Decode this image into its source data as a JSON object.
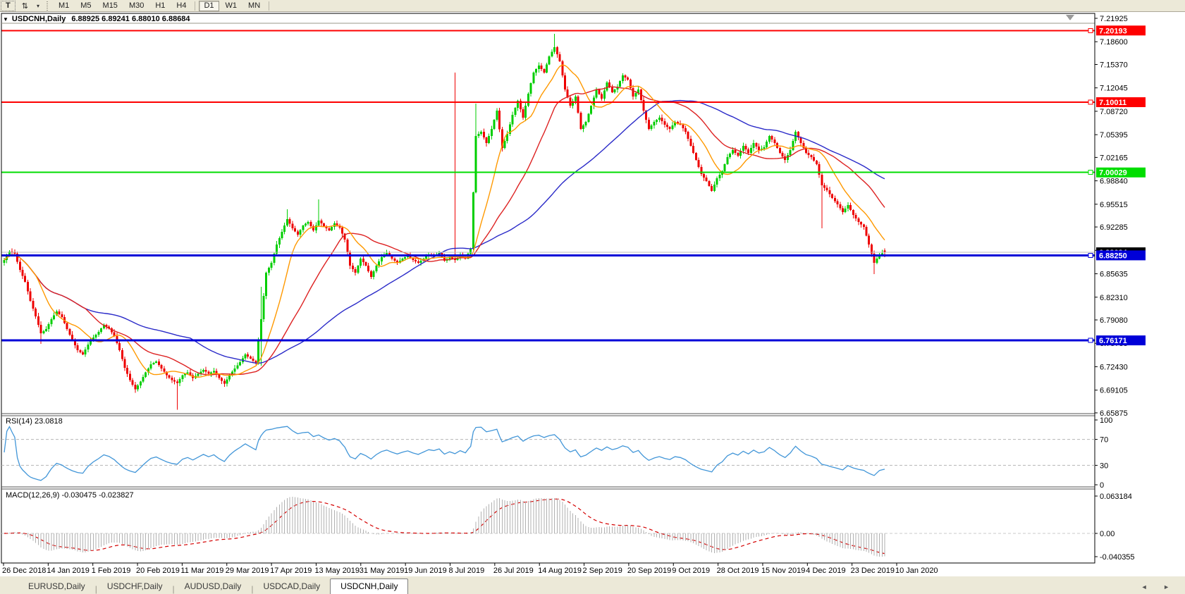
{
  "toolbar": {
    "text_tool_label": "T",
    "indicator_tool_icon": "⇅",
    "dropdown_caret": "▾",
    "timeframes": [
      "M1",
      "M5",
      "M15",
      "M30",
      "H1",
      "H4",
      "D1",
      "W1",
      "MN"
    ],
    "active_timeframe": "D1"
  },
  "title": {
    "dropdown_icon": "▼",
    "symbol": "USDCNH,Daily",
    "ohlc": "6.88925 6.89241 6.88010 6.88684"
  },
  "indicators": {
    "rsi_label": "RSI(14) 23.0818",
    "macd_label": "MACD(12,26,9) -0.030475 -0.023827"
  },
  "tabs": {
    "items": [
      "EURUSD,Daily",
      "USDCHF,Daily",
      "AUDUSD,Daily",
      "USDCAD,Daily",
      "USDCNH,Daily"
    ],
    "active": "USDCNH,Daily",
    "scroll_left": "◄",
    "scroll_right": "►"
  },
  "chart_data": {
    "type": "candlestick",
    "symbol": "USDCNH",
    "timeframe": "Daily",
    "current_ohlc": {
      "open": 6.88925,
      "high": 6.89241,
      "low": 6.8801,
      "close": 6.88684
    },
    "current_price": 6.88684,
    "price_axis_ticks": [
      7.21925,
      7.186,
      7.1537,
      7.12045,
      7.0872,
      7.05395,
      7.02165,
      6.9884,
      6.95515,
      6.92285,
      6.8896,
      6.85635,
      6.8231,
      6.7908,
      6.75755,
      6.7243,
      6.69105,
      6.65875
    ],
    "hlines": [
      {
        "price": 7.20193,
        "label": "7.20193",
        "color": "#fe0000",
        "width": 2
      },
      {
        "price": 7.10011,
        "label": "7.10011",
        "color": "#fe0000",
        "width": 2
      },
      {
        "price": 7.00029,
        "label": "7.00029",
        "color": "#00dd00",
        "width": 2
      },
      {
        "price": 6.8825,
        "label": "6.88250",
        "color": "#0000d8",
        "width": 3
      },
      {
        "price": 6.76171,
        "label": "6.76171",
        "color": "#0000d8",
        "width": 3
      }
    ],
    "colors": {
      "up": "#00ce00",
      "down": "#ee0000",
      "ma_fast": "#ff9900",
      "ma_mid": "#dd2222",
      "ma_slow": "#2a2ac8",
      "rsi_line": "#4296d8",
      "macd_hist": "#b0b0b0",
      "macd_signal": "#d40000",
      "bid_line": "#bdbdbd",
      "bid_tag_bg": "#000000"
    },
    "moving_averages": [
      {
        "name": "fast",
        "period": 13,
        "color_key": "ma_fast"
      },
      {
        "name": "medium",
        "period": 32,
        "color_key": "ma_mid"
      },
      {
        "name": "slow",
        "period": 72,
        "color_key": "ma_slow"
      }
    ],
    "anchors_close": [
      6.876,
      6.888,
      6.885,
      6.862,
      6.845,
      6.818,
      6.796,
      6.772,
      6.778,
      6.792,
      6.803,
      6.795,
      6.778,
      6.762,
      6.748,
      6.742,
      6.756,
      6.766,
      6.774,
      6.784,
      6.779,
      6.768,
      6.748,
      6.723,
      6.705,
      6.692,
      6.703,
      6.716,
      6.728,
      6.732,
      6.722,
      6.712,
      6.705,
      6.701,
      6.712,
      6.716,
      6.708,
      6.714,
      6.72,
      6.714,
      6.718,
      6.708,
      6.7,
      6.712,
      6.722,
      6.731,
      6.742,
      6.736,
      6.73,
      6.792,
      6.858,
      6.872,
      6.898,
      6.916,
      6.934,
      6.921,
      6.912,
      6.925,
      6.93,
      6.918,
      6.932,
      6.924,
      6.918,
      6.928,
      6.922,
      6.905,
      6.868,
      6.858,
      6.878,
      6.868,
      6.852,
      6.868,
      6.88,
      6.886,
      6.878,
      6.872,
      6.878,
      6.882,
      6.876,
      6.872,
      6.878,
      6.884,
      6.882,
      6.886,
      6.875,
      6.88,
      6.876,
      6.882,
      6.878,
      6.892,
      7.052,
      7.058,
      7.042,
      7.062,
      7.088,
      7.035,
      7.055,
      7.082,
      7.102,
      7.078,
      7.112,
      7.142,
      7.152,
      7.142,
      7.165,
      7.178,
      7.158,
      7.118,
      7.095,
      7.108,
      7.062,
      7.072,
      7.095,
      7.118,
      7.105,
      7.128,
      7.114,
      7.122,
      7.138,
      7.132,
      7.108,
      7.118,
      7.088,
      7.062,
      7.072,
      7.078,
      7.068,
      7.062,
      7.072,
      7.068,
      7.058,
      7.038,
      7.018,
      6.998,
      6.988,
      6.974,
      6.992,
      7.002,
      7.022,
      7.032,
      7.024,
      7.038,
      7.028,
      7.042,
      7.032,
      7.036,
      7.052,
      7.042,
      7.028,
      7.018,
      7.032,
      7.058,
      7.042,
      7.028,
      7.022,
      7.012,
      6.982,
      6.975,
      6.964,
      6.955,
      6.944,
      6.954,
      6.94,
      6.93,
      6.923,
      6.898,
      6.872,
      6.884,
      6.887
    ],
    "special_bars": {
      "14": {
        "low": 6.757
      },
      "66": {
        "low": 6.663
      },
      "98": {
        "low": 6.726,
        "high": 6.838
      },
      "108": {
        "high": 6.948
      },
      "120": {
        "high": 6.962
      },
      "172": {
        "high": 7.142
      },
      "179": {
        "low": 6.89
      },
      "180": {
        "high": 7.098
      },
      "210": {
        "high": 7.197
      },
      "312": {
        "low": 6.921
      },
      "332": {
        "low": 6.856
      },
      "336": {
        "open": 6.88925,
        "high": 6.89241,
        "low": 6.8801,
        "close": 6.88684
      }
    },
    "rsi": {
      "period": 14,
      "render_period": 18,
      "last": 23.0818,
      "levels": [
        70,
        30
      ],
      "axis_ticks": [
        "100",
        "70",
        "30",
        "0"
      ],
      "axis_values": [
        100,
        70,
        30,
        0
      ]
    },
    "macd": {
      "fast": 12,
      "slow": 26,
      "signal": 9,
      "render": {
        "fast": 15,
        "slow": 34,
        "signal": 12
      },
      "last_macd": -0.030475,
      "last_signal": -0.023827,
      "axis_ticks": [
        "0.063184",
        "0.00",
        "-0.040355"
      ],
      "axis_values": [
        0.063184,
        0,
        -0.040355
      ]
    },
    "date_labels": [
      "26 Dec 2018",
      "14 Jan 2019",
      "1 Feb 2019",
      "20 Feb 2019",
      "11 Mar 2019",
      "29 Mar 2019",
      "17 Apr 2019",
      "13 May 2019",
      "31 May 2019",
      "19 Jun 2019",
      "8 Jul 2019",
      "26 Jul 2019",
      "14 Aug 2019",
      "2 Sep 2019",
      "20 Sep 2019",
      "9 Oct 2019",
      "28 Oct 2019",
      "15 Nov 2019",
      "4 Dec 2019",
      "23 Dec 2019",
      "10 Jan 2020"
    ],
    "layout_hints": {
      "grid": false,
      "legend": false,
      "y_axis_side": "right"
    }
  }
}
